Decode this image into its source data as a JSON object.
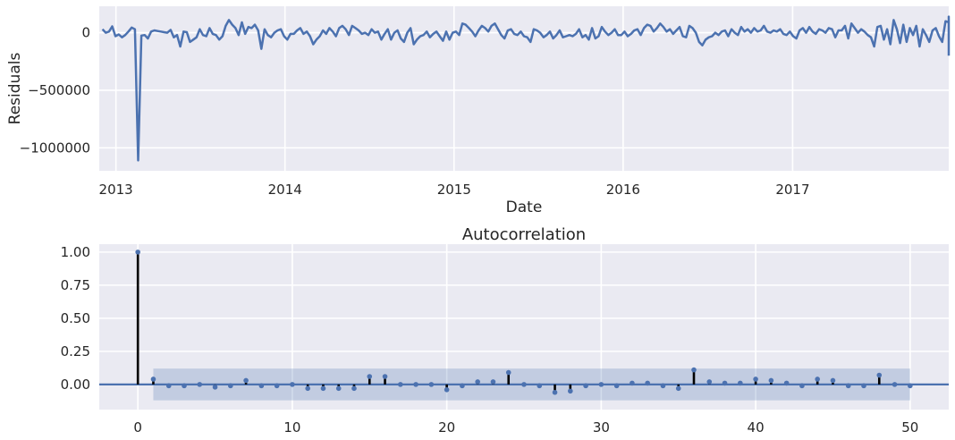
{
  "chart_data": [
    {
      "type": "line",
      "title": "",
      "xlabel": "Date",
      "ylabel": "Residuals",
      "x_tick_labels": [
        "2013",
        "2014",
        "2015",
        "2016",
        "2017"
      ],
      "y_tick_labels": [
        "0",
        "−500000",
        "−1000000"
      ],
      "y_ticks": [
        0,
        -500000,
        -1000000
      ],
      "ylim": [
        -1200000,
        230000
      ],
      "xlim": [
        "2012-11-26",
        "2017-12-04"
      ],
      "grid": true,
      "legend": "none",
      "series": [
        {
          "x_start": "2012-12-03",
          "x_step_days": 7,
          "values": [
            30000,
            0,
            10000,
            55000,
            -30000,
            -15000,
            -40000,
            -20000,
            10000,
            45000,
            30000,
            -1110000,
            -25000,
            -20000,
            -50000,
            10000,
            20000,
            15000,
            10000,
            5000,
            0,
            25000,
            -40000,
            -20000,
            -120000,
            10000,
            5000,
            -80000,
            -60000,
            -40000,
            30000,
            -20000,
            -30000,
            40000,
            -10000,
            -20000,
            -60000,
            -30000,
            60000,
            110000,
            70000,
            40000,
            -20000,
            90000,
            -10000,
            50000,
            40000,
            70000,
            20000,
            -140000,
            30000,
            -20000,
            -40000,
            0,
            20000,
            30000,
            -30000,
            -60000,
            -10000,
            -10000,
            20000,
            40000,
            -10000,
            10000,
            -30000,
            -100000,
            -60000,
            -30000,
            20000,
            -10000,
            40000,
            10000,
            -30000,
            40000,
            60000,
            30000,
            -20000,
            60000,
            40000,
            20000,
            -10000,
            0,
            -20000,
            30000,
            0,
            10000,
            -60000,
            -10000,
            30000,
            -60000,
            0,
            20000,
            -50000,
            -80000,
            0,
            40000,
            -100000,
            -60000,
            -30000,
            -20000,
            10000,
            -40000,
            -10000,
            10000,
            -30000,
            -70000,
            10000,
            -60000,
            0,
            10000,
            -20000,
            80000,
            70000,
            40000,
            10000,
            -30000,
            20000,
            60000,
            40000,
            10000,
            60000,
            80000,
            30000,
            -20000,
            -50000,
            20000,
            30000,
            -10000,
            -20000,
            10000,
            -30000,
            -40000,
            -80000,
            30000,
            20000,
            0,
            -40000,
            -20000,
            10000,
            -50000,
            -20000,
            20000,
            -40000,
            -30000,
            -20000,
            -30000,
            -10000,
            30000,
            -40000,
            -20000,
            -60000,
            40000,
            -50000,
            -30000,
            50000,
            10000,
            -20000,
            0,
            30000,
            -20000,
            -20000,
            10000,
            -30000,
            -10000,
            20000,
            30000,
            -20000,
            40000,
            70000,
            60000,
            10000,
            40000,
            80000,
            50000,
            10000,
            30000,
            -10000,
            20000,
            50000,
            -30000,
            -40000,
            60000,
            40000,
            0,
            -80000,
            -110000,
            -60000,
            -40000,
            -30000,
            0,
            -20000,
            10000,
            20000,
            -30000,
            30000,
            0,
            -20000,
            50000,
            10000,
            30000,
            0,
            40000,
            10000,
            20000,
            60000,
            10000,
            0,
            20000,
            10000,
            30000,
            -10000,
            -20000,
            10000,
            -30000,
            -50000,
            20000,
            40000,
            0,
            50000,
            10000,
            -10000,
            30000,
            20000,
            0,
            40000,
            30000,
            -40000,
            20000,
            20000,
            60000,
            -50000,
            80000,
            40000,
            0,
            30000,
            10000,
            -20000,
            -40000,
            -120000,
            50000,
            60000,
            -60000,
            30000,
            -100000,
            110000,
            30000,
            -90000,
            70000,
            -80000,
            40000,
            -20000,
            60000,
            -120000,
            30000,
            -20000,
            -80000,
            20000,
            40000,
            -30000,
            -80000,
            100000,
            90000,
            -40000,
            110000,
            20000,
            -60000,
            80000,
            -50000,
            30000,
            10000,
            50000,
            -70000,
            40000,
            20000,
            -10000,
            -90000,
            -10000,
            60000,
            20000,
            -30000,
            40000,
            60000,
            30000,
            -40000,
            0,
            120000,
            -20000,
            110000,
            -30000,
            -20000,
            -40000,
            60000,
            40000,
            -30000,
            0,
            140000,
            -50000,
            30000,
            -120000,
            50000,
            -20000,
            -80000,
            60000,
            -60000,
            70000,
            30000,
            60000,
            -40000,
            100000,
            60000,
            -40000,
            80000,
            140000,
            50000,
            -50000,
            10000,
            -200000
          ]
        }
      ]
    },
    {
      "type": "stem",
      "title": "Autocorrelation",
      "xlabel": "",
      "ylabel": "",
      "x_tick_labels": [
        "0",
        "10",
        "20",
        "30",
        "40",
        "50"
      ],
      "x_ticks": [
        0,
        10,
        20,
        30,
        40,
        50
      ],
      "y_tick_labels": [
        "1.00",
        "0.75",
        "0.50",
        "0.25",
        "0.00"
      ],
      "y_ticks": [
        1.0,
        0.75,
        0.5,
        0.25,
        0.0
      ],
      "xlim": [
        -2.5,
        52.5
      ],
      "ylim": [
        -0.19,
        1.06
      ],
      "grid": true,
      "legend": "none",
      "confidence_band": 0.12,
      "lags": [
        0,
        1,
        2,
        3,
        4,
        5,
        6,
        7,
        8,
        9,
        10,
        11,
        12,
        13,
        14,
        15,
        16,
        17,
        18,
        19,
        20,
        21,
        22,
        23,
        24,
        25,
        26,
        27,
        28,
        29,
        30,
        31,
        32,
        33,
        34,
        35,
        36,
        37,
        38,
        39,
        40,
        41,
        42,
        43,
        44,
        45,
        46,
        47,
        48,
        49,
        50
      ],
      "values": [
        1.0,
        0.04,
        -0.01,
        -0.01,
        0.0,
        -0.02,
        -0.01,
        0.03,
        -0.01,
        -0.01,
        0.0,
        -0.03,
        -0.03,
        -0.03,
        -0.03,
        0.06,
        0.06,
        0.0,
        0.0,
        0.0,
        -0.04,
        -0.01,
        0.02,
        0.02,
        0.09,
        0.0,
        -0.01,
        -0.06,
        -0.05,
        -0.01,
        0.0,
        -0.01,
        0.01,
        0.01,
        -0.01,
        -0.03,
        0.11,
        0.02,
        0.01,
        0.01,
        0.04,
        0.03,
        0.01,
        -0.01,
        0.04,
        0.03,
        -0.01,
        -0.01,
        0.07,
        0.0,
        -0.01
      ]
    }
  ]
}
